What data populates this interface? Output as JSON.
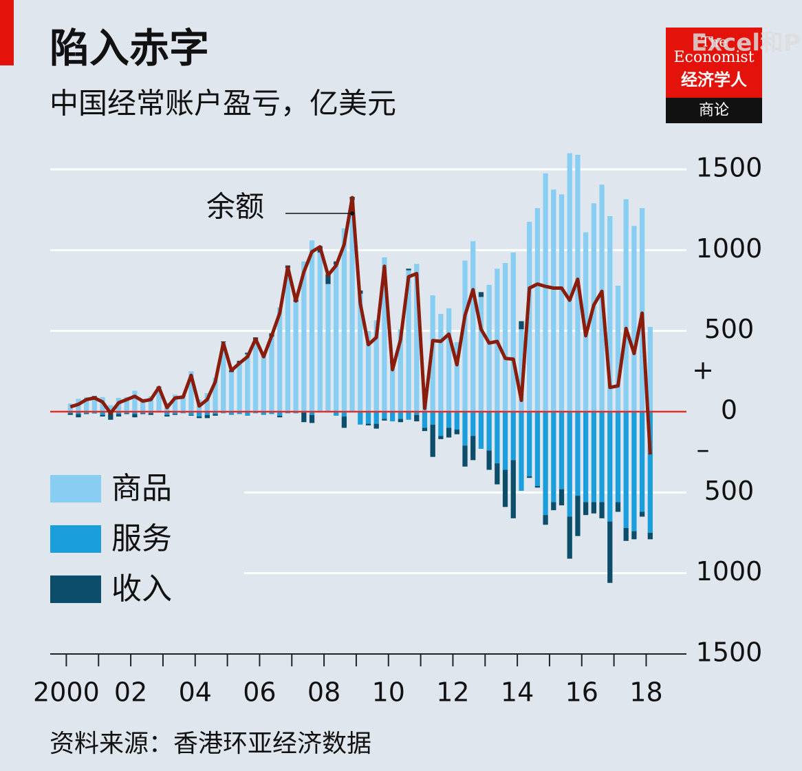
{
  "chart_data": {
    "type": "bar",
    "title": "陷入赤字",
    "subtitle": "中国经常账户盈亏，亿美元",
    "source": "资料来源：香港环亚经济数据",
    "annotation": "余额",
    "y_sign_labels": [
      "+",
      "–"
    ],
    "logo": {
      "line1": "The",
      "line2": "Economist",
      "line3": "经济学人",
      "line4": "商论"
    },
    "watermark": "Excel和P",
    "x": [
      2000,
      2000.25,
      2000.5,
      2000.75,
      2001,
      2001.25,
      2001.5,
      2001.75,
      2002,
      2002.25,
      2002.5,
      2002.75,
      2003,
      2003.25,
      2003.5,
      2003.75,
      2004,
      2004.25,
      2004.5,
      2004.75,
      2005,
      2005.25,
      2005.5,
      2005.75,
      2006,
      2006.25,
      2006.5,
      2006.75,
      2007,
      2007.25,
      2007.5,
      2007.75,
      2008,
      2008.25,
      2008.5,
      2008.75,
      2009,
      2009.25,
      2009.5,
      2009.75,
      2010,
      2010.25,
      2010.5,
      2010.75,
      2011,
      2011.25,
      2011.5,
      2011.75,
      2012,
      2012.25,
      2012.5,
      2012.75,
      2013,
      2013.25,
      2013.5,
      2013.75,
      2014,
      2014.25,
      2014.5,
      2014.75,
      2015,
      2015.25,
      2015.5,
      2015.75,
      2016,
      2016.25,
      2016.5,
      2016.75,
      2017,
      2017.25,
      2017.5,
      2017.75,
      2018
    ],
    "series": [
      {
        "name": "商品",
        "color": "#88cdf2",
        "values": [
          50,
          80,
          90,
          92,
          90,
          40,
          85,
          90,
          130,
          80,
          95,
          150,
          55,
          105,
          95,
          250,
          75,
          115,
          210,
          430,
          245,
          300,
          355,
          445,
          350,
          465,
          645,
          890,
          680,
          930,
          1060,
          985,
          790,
          910,
          1135,
          1310,
          730,
          500,
          565,
          955,
          300,
          510,
          875,
          915,
          140,
          720,
          605,
          640,
          430,
          935,
          1055,
          710,
          785,
          885,
          920,
          985,
          510,
          1175,
          1260,
          1475,
          1375,
          1345,
          1600,
          1590,
          1110,
          1290,
          1405,
          1210,
          780,
          1315,
          1150,
          1260,
          525
        ]
      },
      {
        "name": "服务",
        "color": "#1b9fdc",
        "values": [
          -10,
          -15,
          -10,
          -12,
          -20,
          -10,
          -15,
          -10,
          -15,
          -10,
          -10,
          -5,
          -20,
          -15,
          -10,
          -20,
          -30,
          -20,
          -15,
          -10,
          -20,
          -15,
          -25,
          -10,
          -20,
          -15,
          -25,
          -10,
          -10,
          -5,
          -20,
          -5,
          -5,
          -25,
          -30,
          -5,
          -80,
          -75,
          -75,
          -45,
          -60,
          -45,
          -50,
          -20,
          -100,
          -80,
          -150,
          -100,
          -110,
          -210,
          -150,
          -230,
          -240,
          -320,
          -360,
          -300,
          -490,
          -400,
          -460,
          -640,
          -560,
          -480,
          -650,
          -520,
          -560,
          -560,
          -560,
          -680,
          -560,
          -720,
          -740,
          -620,
          -750
        ]
      },
      {
        "name": "收入",
        "color": "#0c4d6a",
        "values": [
          -10,
          -20,
          -5,
          5,
          -10,
          -40,
          -15,
          -5,
          -20,
          -5,
          -10,
          5,
          -10,
          -5,
          5,
          -5,
          -10,
          -20,
          -10,
          5,
          10,
          15,
          10,
          15,
          10,
          20,
          -10,
          15,
          15,
          -60,
          -50,
          40,
          60,
          20,
          -70,
          20,
          20,
          -10,
          -30,
          -10,
          20,
          -20,
          10,
          -40,
          -20,
          -200,
          -20,
          -60,
          -30,
          -130,
          -150,
          30,
          -120,
          -130,
          -230,
          -360,
          50,
          -10,
          -10,
          -60,
          -50,
          -100,
          -260,
          -250,
          -80,
          -70,
          -100,
          -380,
          -60,
          -80,
          -50,
          -30,
          -40
        ]
      }
    ],
    "balance": {
      "name": "余额",
      "color": "#8a1c0c",
      "values": [
        30,
        45,
        75,
        85,
        60,
        -10,
        55,
        75,
        95,
        65,
        75,
        150,
        25,
        85,
        90,
        225,
        35,
        75,
        185,
        425,
        255,
        300,
        340,
        450,
        340,
        470,
        610,
        895,
        685,
        865,
        990,
        1020,
        845,
        905,
        1035,
        1325,
        670,
        415,
        460,
        900,
        260,
        445,
        835,
        855,
        20,
        440,
        435,
        480,
        290,
        595,
        755,
        510,
        425,
        435,
        330,
        325,
        70,
        765,
        790,
        775,
        765,
        765,
        690,
        820,
        470,
        660,
        745,
        150,
        160,
        515,
        360,
        610,
        -265
      ]
    },
    "xlim": [
      1999.5,
      2019.25
    ],
    "xticks": [
      2000,
      {
        "value": 2002,
        "label": "02"
      },
      {
        "value": 2004,
        "label": "04"
      },
      {
        "value": 2006,
        "label": "06"
      },
      {
        "value": 2008,
        "label": "08"
      },
      {
        "value": 2010,
        "label": "10"
      },
      {
        "value": 2012,
        "label": "12"
      },
      {
        "value": 2014,
        "label": "14"
      },
      {
        "value": 2016,
        "label": "16"
      },
      {
        "value": 2018,
        "label": "18"
      }
    ],
    "x_minor_ticks": [
      2001,
      2003,
      2005,
      2007,
      2009,
      2011,
      2013,
      2015,
      2017
    ],
    "ylim": [
      -1500,
      1500
    ],
    "yticks": [
      1500,
      1000,
      500,
      0,
      {
        "value": -500,
        "label": "500"
      },
      {
        "value": -1000,
        "label": "1000"
      },
      {
        "value": -1500,
        "label": "1500"
      }
    ],
    "zero_line_color": "#e0302a",
    "grid": true,
    "legend_position": "bottom-left"
  }
}
